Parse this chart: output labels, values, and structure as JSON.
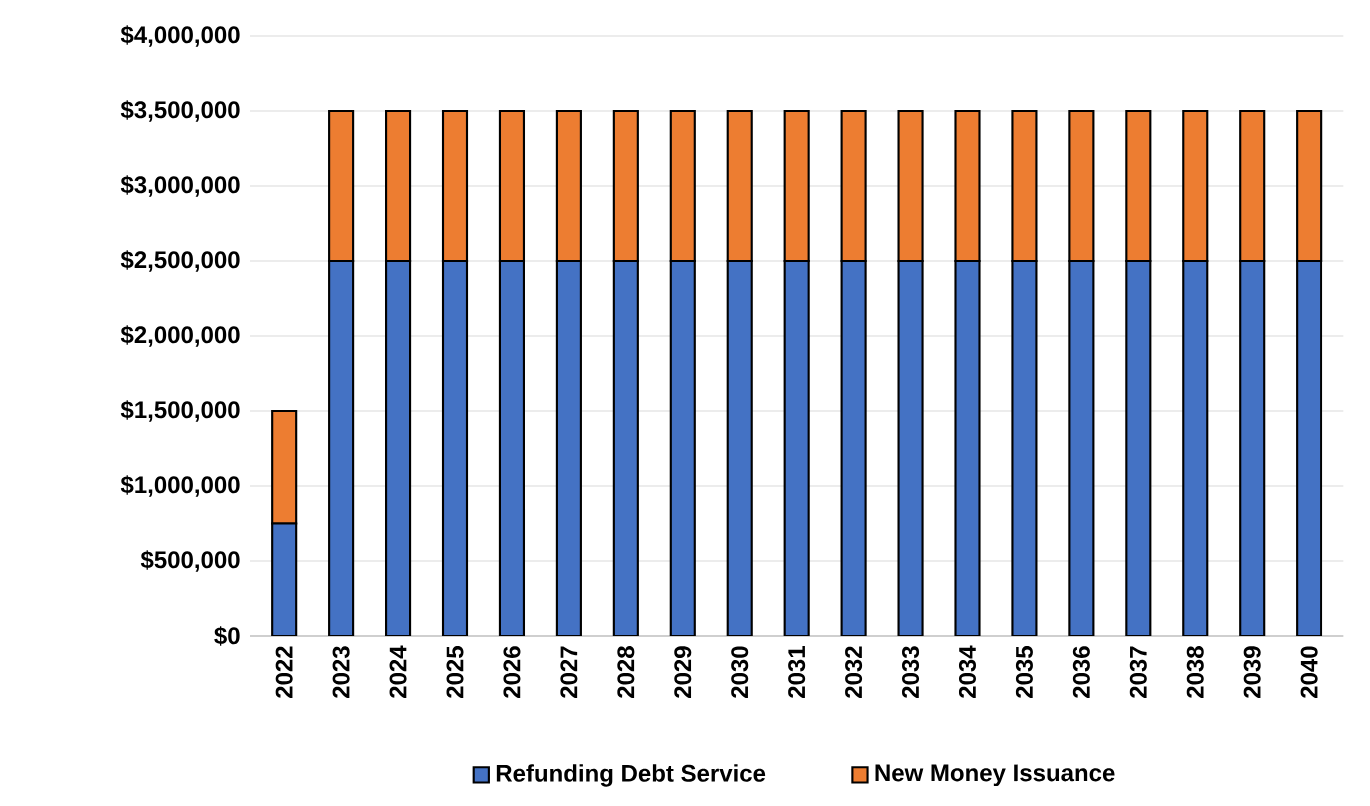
{
  "chart_data": {
    "type": "bar",
    "stacked": true,
    "categories": [
      "2022",
      "2023",
      "2024",
      "2025",
      "2026",
      "2027",
      "2028",
      "2029",
      "2030",
      "2031",
      "2032",
      "2033",
      "2034",
      "2035",
      "2036",
      "2037",
      "2038",
      "2039",
      "2040"
    ],
    "series": [
      {
        "name": "Refunding Debt Service",
        "color": "#4472c4",
        "values": [
          750000,
          2500000,
          2500000,
          2500000,
          2500000,
          2500000,
          2500000,
          2500000,
          2500000,
          2500000,
          2500000,
          2500000,
          2500000,
          2500000,
          2500000,
          2500000,
          2500000,
          2500000,
          2500000
        ]
      },
      {
        "name": "New Money Issuance",
        "color": "#ed7d31",
        "values": [
          750000,
          1000000,
          1000000,
          1000000,
          1000000,
          1000000,
          1000000,
          1000000,
          1000000,
          1000000,
          1000000,
          1000000,
          1000000,
          1000000,
          1000000,
          1000000,
          1000000,
          1000000,
          1000000
        ]
      }
    ],
    "ylim": [
      0,
      4000000
    ],
    "yticks": [
      {
        "value": 0,
        "label": "$0"
      },
      {
        "value": 500000,
        "label": "$500,000"
      },
      {
        "value": 1000000,
        "label": "$1,000,000"
      },
      {
        "value": 1500000,
        "label": "$1,500,000"
      },
      {
        "value": 2000000,
        "label": "$2,000,000"
      },
      {
        "value": 2500000,
        "label": "$2,500,000"
      },
      {
        "value": 3000000,
        "label": "$3,000,000"
      },
      {
        "value": 3500000,
        "label": "$3,500,000"
      },
      {
        "value": 4000000,
        "label": "$4,000,000"
      }
    ],
    "grid": "y",
    "legend": "bottom"
  }
}
